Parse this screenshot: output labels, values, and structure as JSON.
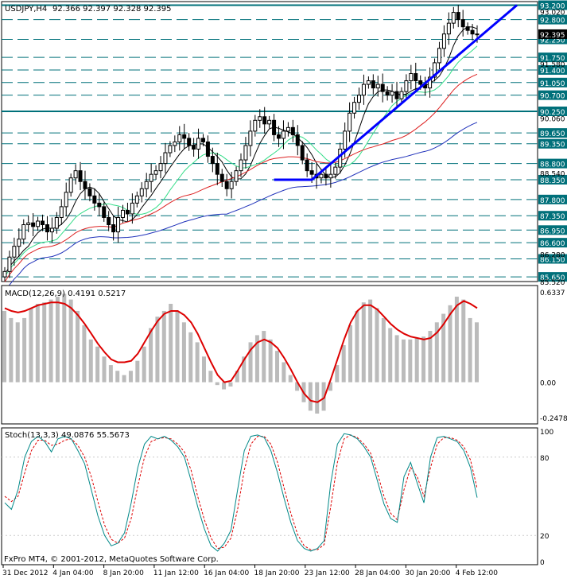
{
  "header": {
    "symbol": "USDJPY,H4",
    "quote": "92.366 92.397 92.328 92.395"
  },
  "footer": {
    "copyright": "FxPro MT4, © 2001-2012, MetaQuotes Software Corp."
  },
  "x_axis": {
    "labels": [
      "31 Dec 2012",
      "4 Jan 04:00",
      "8 Jan 20:00",
      "11 Jan 12:00",
      "16 Jan 04:00",
      "18 Jan 20:00",
      "23 Jan 12:00",
      "28 Jan 04:00",
      "30 Jan 20:00",
      "4 Feb 12:00"
    ]
  },
  "colors": {
    "background": "#ffffff",
    "frame": "#000000",
    "candles": "#000000",
    "level_lines": "#00707a",
    "trendline": "#0000ff",
    "ma_black": "#000000",
    "ma_green": "#33dd88",
    "ma_red": "#dd2222",
    "ma_blue": "#2233bb",
    "macd_histogram": "#bbbbbb",
    "macd_signal": "#dd0000",
    "stoch_main": "#008888",
    "stoch_signal": "#dd0000",
    "price_tag_bg": "#00707a",
    "current_price_tag_bg": "#000000"
  },
  "chart_data": [
    {
      "type": "candlestick",
      "title": "USDJPY,H4",
      "ohlc_current": {
        "open": 92.366,
        "high": 92.397,
        "low": 92.328,
        "close": 92.395
      },
      "ylim": [
        85.52,
        93.3
      ],
      "levels": [
        {
          "price": 93.2,
          "label": "93.200",
          "style": "solid"
        },
        {
          "price": 92.8,
          "label": "92.800",
          "style": "dashed"
        },
        {
          "price": 92.25,
          "label": "92.250",
          "style": "dashed"
        },
        {
          "price": 91.75,
          "label": "91.750",
          "style": "dashed"
        },
        {
          "price": 91.4,
          "label": "91.400",
          "style": "dashed"
        },
        {
          "price": 91.05,
          "label": "91.050",
          "style": "dashed"
        },
        {
          "price": 90.7,
          "label": "90.700",
          "style": "dashed"
        },
        {
          "price": 90.25,
          "label": "90.250",
          "style": "solid"
        },
        {
          "price": 89.65,
          "label": "89.650",
          "style": "dashed"
        },
        {
          "price": 89.35,
          "label": "89.350",
          "style": "dashed"
        },
        {
          "price": 88.8,
          "label": "88.800",
          "style": "dashed"
        },
        {
          "price": 88.35,
          "label": "88.350",
          "style": "dashed"
        },
        {
          "price": 87.8,
          "label": "87.800",
          "style": "dashed"
        },
        {
          "price": 87.35,
          "label": "87.350",
          "style": "dashed"
        },
        {
          "price": 86.95,
          "label": "86.950",
          "style": "dashed"
        },
        {
          "price": 86.6,
          "label": "86.600",
          "style": "dashed"
        },
        {
          "price": 86.15,
          "label": "86.150",
          "style": "dashed"
        },
        {
          "price": 85.65,
          "label": "85.650",
          "style": "dashed"
        }
      ],
      "scale_labels": [
        {
          "price": 93.02,
          "label": "93.020"
        },
        {
          "price": 91.58,
          "label": "91.580"
        },
        {
          "price": 90.06,
          "label": "90.060"
        },
        {
          "price": 88.54,
          "label": "88.540"
        },
        {
          "price": 86.28,
          "label": "86.280"
        },
        {
          "price": 85.52,
          "label": "85.520"
        }
      ],
      "current_price_label": "92.395",
      "closes": [
        85.8,
        86.2,
        86.5,
        86.7,
        87.1,
        87.15,
        87.05,
        87.2,
        87.1,
        86.9,
        87.0,
        87.3,
        87.6,
        88.0,
        88.4,
        88.6,
        88.3,
        88.1,
        87.9,
        87.7,
        87.6,
        87.3,
        87.1,
        86.9,
        87.3,
        87.5,
        87.4,
        87.7,
        87.9,
        88.1,
        88.3,
        88.5,
        88.6,
        88.8,
        89.1,
        89.3,
        89.4,
        89.6,
        89.5,
        89.3,
        89.2,
        89.5,
        89.4,
        89.0,
        88.8,
        88.5,
        88.3,
        88.1,
        88.3,
        88.6,
        88.9,
        89.3,
        89.7,
        90.0,
        90.1,
        89.9,
        90.0,
        89.6,
        89.5,
        89.7,
        89.8,
        89.6,
        89.3,
        88.9,
        88.6,
        88.5,
        88.4,
        88.5,
        88.4,
        88.5,
        88.7,
        89.2,
        89.7,
        90.2,
        90.5,
        90.7,
        91.0,
        91.1,
        90.9,
        91.0,
        90.8,
        90.7,
        90.8,
        90.6,
        90.8,
        91.1,
        91.3,
        91.1,
        91.0,
        90.9,
        91.2,
        91.6,
        92.0,
        92.4,
        92.7,
        93.0,
        92.8,
        92.6,
        92.5,
        92.4,
        92.395
      ]
    },
    {
      "type": "line",
      "title": "MACD(12,26,9) 0.4191 0.5217",
      "indicator": "MACD",
      "params": [
        12,
        26,
        9
      ],
      "current_values": [
        0.4191,
        0.5217
      ],
      "ylim": [
        -0.2478,
        0.6337
      ],
      "scale_labels": [
        "0.6337",
        "0.00",
        "-0.2478"
      ],
      "histogram": [
        0.5,
        0.45,
        0.42,
        0.45,
        0.52,
        0.55,
        0.56,
        0.58,
        0.6,
        0.62,
        0.58,
        0.5,
        0.4,
        0.3,
        0.25,
        0.18,
        0.12,
        0.08,
        0.05,
        0.08,
        0.15,
        0.25,
        0.38,
        0.46,
        0.5,
        0.55,
        0.5,
        0.42,
        0.35,
        0.28,
        0.18,
        0.08,
        -0.02,
        -0.05,
        -0.03,
        0.08,
        0.18,
        0.28,
        0.33,
        0.36,
        0.3,
        0.22,
        0.14,
        0.05,
        -0.06,
        -0.14,
        -0.2,
        -0.22,
        -0.2,
        -0.06,
        0.12,
        0.26,
        0.4,
        0.5,
        0.56,
        0.58,
        0.52,
        0.45,
        0.38,
        0.33,
        0.3,
        0.3,
        0.31,
        0.32,
        0.36,
        0.42,
        0.48,
        0.54,
        0.6,
        0.58,
        0.45,
        0.42
      ],
      "signal": [
        0.52,
        0.5,
        0.49,
        0.5,
        0.52,
        0.54,
        0.55,
        0.56,
        0.56,
        0.55,
        0.52,
        0.47,
        0.41,
        0.34,
        0.27,
        0.21,
        0.16,
        0.14,
        0.14,
        0.15,
        0.2,
        0.28,
        0.36,
        0.43,
        0.48,
        0.5,
        0.5,
        0.47,
        0.42,
        0.34,
        0.24,
        0.14,
        0.05,
        0.0,
        0.01,
        0.08,
        0.16,
        0.23,
        0.28,
        0.3,
        0.28,
        0.24,
        0.17,
        0.09,
        0.0,
        -0.08,
        -0.13,
        -0.14,
        -0.11,
        0.02,
        0.16,
        0.3,
        0.42,
        0.5,
        0.54,
        0.54,
        0.51,
        0.46,
        0.41,
        0.37,
        0.34,
        0.32,
        0.31,
        0.3,
        0.31,
        0.35,
        0.41,
        0.48,
        0.54,
        0.57,
        0.55,
        0.52
      ]
    },
    {
      "type": "line",
      "title": "Stoch(13,3,3) 49.0876 55.5673",
      "indicator": "Stochastic",
      "params": [
        13,
        3,
        3
      ],
      "current_values": [
        49.0876,
        55.5673
      ],
      "ylim": [
        0,
        100
      ],
      "scale_labels": [
        "100",
        "80",
        "20",
        "0"
      ],
      "main": [
        45,
        40,
        55,
        80,
        92,
        96,
        92,
        84,
        94,
        96,
        94,
        85,
        75,
        55,
        35,
        20,
        12,
        14,
        22,
        45,
        72,
        90,
        96,
        94,
        96,
        93,
        88,
        80,
        62,
        42,
        25,
        12,
        8,
        14,
        24,
        55,
        85,
        96,
        97,
        95,
        85,
        68,
        48,
        30,
        16,
        10,
        8,
        10,
        16,
        60,
        90,
        98,
        97,
        94,
        88,
        80,
        62,
        44,
        33,
        30,
        65,
        76,
        60,
        45,
        80,
        95,
        96,
        94,
        92,
        85,
        72,
        49
      ],
      "signal": [
        50,
        46,
        50,
        68,
        85,
        93,
        93,
        89,
        90,
        93,
        94,
        89,
        80,
        65,
        46,
        28,
        17,
        14,
        18,
        33,
        58,
        80,
        92,
        94,
        95,
        94,
        90,
        84,
        70,
        50,
        32,
        18,
        10,
        11,
        18,
        40,
        70,
        90,
        96,
        96,
        90,
        76,
        56,
        37,
        21,
        12,
        9,
        9,
        13,
        42,
        76,
        94,
        97,
        95,
        90,
        83,
        68,
        50,
        37,
        32,
        55,
        72,
        65,
        50,
        72,
        90,
        95,
        95,
        93,
        88,
        78,
        56
      ]
    }
  ]
}
